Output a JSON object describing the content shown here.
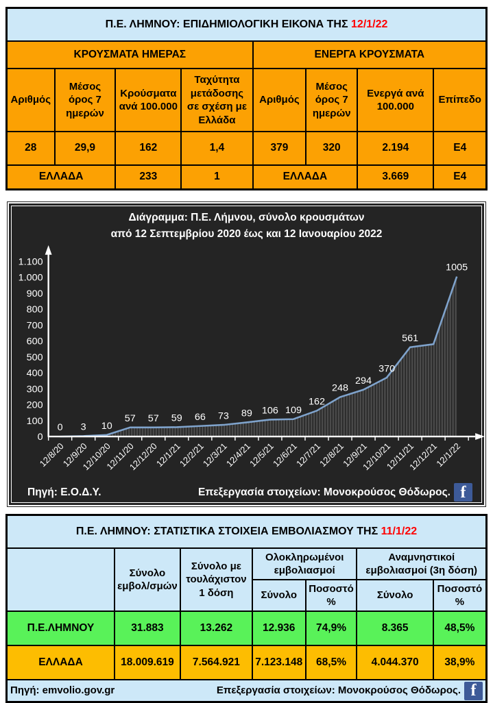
{
  "colors": {
    "orange": "#FCA103",
    "gold": "#FDBD01",
    "green": "#59F259",
    "light_blue": "#CDE8F8",
    "date_red": "#FF0000",
    "chart_bg": "#242424",
    "chart_line": "#7FA3CC",
    "facebook_blue": "#3D5A98"
  },
  "epi_table": {
    "title_prefix": "Π.Ε. ΛΗΜΝΟΥ: ΕΠΙΔΗΜΙΟΛΟΓΙΚΗ ΕΙΚΟΝΑ ΤΗΣ ",
    "title_date": "12/1/22",
    "group_headers": [
      "ΚΡΟΥΣΜΑΤΑ ΗΜΕΡΑΣ",
      "ΕΝΕΡΓΑ ΚΡΟΥΣΜΑΤΑ"
    ],
    "col_headers": [
      "Αριθμός",
      "Μέσος όρος 7 ημερών",
      "Κρούσματα ανά 100.000",
      "Ταχύτητα μετάδοσης σε σχέση με Ελλάδα",
      "Αριθμός",
      "Μέσος όρος 7 ημερών",
      "Ενεργά ανά 100.000",
      "Επίπεδο"
    ],
    "row_limnos": [
      "28",
      "29,9",
      "162",
      "1,4",
      "379",
      "320",
      "2.194",
      "Ε4"
    ],
    "row_greece": {
      "label_left": "ΕΛΛΑΔΑ",
      "cases_per_100k": "233",
      "transmission_speed": "1",
      "label_right": "ΕΛΛΑΔΑ",
      "active_per_100k": "3.669",
      "level": "Ε4"
    }
  },
  "chart": {
    "title_line1": "Διάγραμμα:  Π.Ε. Λήμνου, σύνολο κρουσμάτων",
    "title_line2": "από 12 Σεπτεμβρίου 2020 έως και 12 Ιανουαρίου 2022",
    "source": "Πηγή: Ε.Ο.Δ.Υ.",
    "credit": "Επεξεργασία  στοιχείων: Μονοκρούσος Θόδωρος.",
    "facebook_glyph": "f"
  },
  "chart_data": {
    "type": "area",
    "title": "Διάγραμμα: Π.Ε. Λήμνου, σύνολο κρουσμάτων από 12 Σεπτεμβρίου 2020 έως και 12 Ιανουαρίου 2022",
    "xlabel": "",
    "ylabel": "",
    "x": [
      "12/8/20",
      "12/9/20",
      "12/10/20",
      "12/11/20",
      "12/12/20",
      "12/1/21",
      "12/2/21",
      "12/3/21",
      "12/4/21",
      "12/5/21",
      "12/6/21",
      "12/7/21",
      "12/8/21",
      "12/9/21",
      "12/10/21",
      "12/11/21",
      "12/12/21",
      "12/1/22"
    ],
    "values": [
      0,
      3,
      10,
      57,
      57,
      59,
      66,
      73,
      89,
      106,
      109,
      162,
      248,
      294,
      370,
      561,
      580,
      1005
    ],
    "point_labels": [
      "0",
      "3",
      "10",
      "57",
      "57",
      "59",
      "66",
      "73",
      "89",
      "106",
      "109",
      "162",
      "248",
      "294",
      "370",
      "561",
      "",
      "1005"
    ],
    "y_ticks": [
      "0",
      "100",
      "200",
      "300",
      "400",
      "500",
      "600",
      "700",
      "800",
      "900",
      "1.000",
      "1.100"
    ],
    "ylim": [
      0,
      1100
    ],
    "grid": false,
    "legend": false
  },
  "vax_table": {
    "title_prefix": "Π.Ε. ΛΗΜΝΟΥ: ΣΤΑΤΙΣΤΙΚΑ ΣΤΟΙΧΕΙΑ ΕΜΒΟΛΙΑΣΜΟΥ ΤΗΣ ",
    "title_date": "11/1/22",
    "col_total": "Σύνολο εμβολ/σμών",
    "col_first_dose": "Σύνολο με τουλάχιστον 1 δόση",
    "group_completed": "Ολοκληρωμένοι εμβολιασμοί",
    "group_booster": "Αναμνηστικοί εμβολιασμοί (3η δόση)",
    "sub_total_1": "Σύνολο",
    "sub_pct_1": "Ποσοστό %",
    "sub_total_2": "Σύνολο",
    "sub_pct_2": "Ποσοστό %",
    "row_limnos": [
      "Π.Ε.ΛΗΜΝΟΥ",
      "31.883",
      "13.262",
      "12.936",
      "74,9%",
      "8.365",
      "48,5%"
    ],
    "row_greece": [
      "ΕΛΛΑΔΑ",
      "18.009.619",
      "7.564.921",
      "7.123.148",
      "68,5%",
      "4.044.370",
      "38,9%"
    ],
    "source": "Πηγή: emvolio.gov.gr",
    "credit": "Επεξεργασία στοιχείων: Μονοκρούσος Θόδωρος.",
    "facebook_glyph": "f"
  }
}
